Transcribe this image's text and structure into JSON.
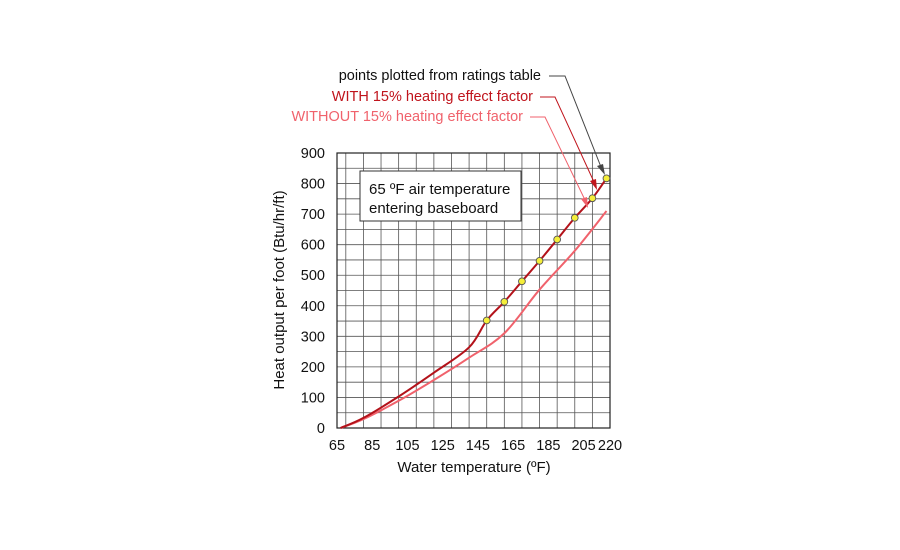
{
  "chart_data": {
    "type": "line",
    "xlabel": "Water temperature (ºF)",
    "ylabel": "Heat output per foot (Btu/hr/ft)",
    "xlim": [
      65,
      220
    ],
    "ylim": [
      0,
      900
    ],
    "x_ticks": [
      65,
      85,
      105,
      125,
      145,
      165,
      185,
      205,
      220
    ],
    "y_ticks": [
      0,
      100,
      200,
      300,
      400,
      500,
      600,
      700,
      800,
      900
    ],
    "grid": true,
    "note_lines": [
      "65 ºF air temperature",
      "entering baseboard"
    ],
    "series": [
      {
        "name": "WITH 15% heating effect factor",
        "color": "#b3121a",
        "x": [
          67,
          80,
          100,
          120,
          140,
          150,
          160,
          170,
          180,
          190,
          200,
          210,
          218
        ],
        "y": [
          0,
          33,
          103,
          181,
          264,
          352,
          413,
          480,
          547,
          617,
          688,
          752,
          817
        ]
      },
      {
        "name": "WITHOUT 15% heating effect factor",
        "color": "#f0626c",
        "x": [
          67,
          80,
          100,
          120,
          140,
          160,
          180,
          200,
          218
        ],
        "y": [
          0,
          29,
          89,
          157,
          230,
          310,
          453,
          580,
          710
        ]
      }
    ],
    "points": {
      "name": "points plotted from ratings table",
      "x": [
        150,
        160,
        170,
        180,
        190,
        200,
        210,
        218
      ],
      "y": [
        352,
        413,
        480,
        547,
        617,
        688,
        752,
        817
      ]
    }
  }
}
